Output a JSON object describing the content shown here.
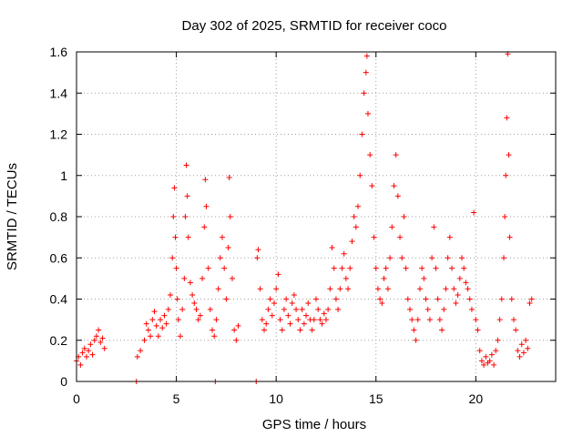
{
  "chart_data": {
    "type": "scatter",
    "title": "Day 302 of 2025, SRMTID for receiver coco",
    "xlabel": "GPS time / hours",
    "ylabel": "SRMTID / TECUs",
    "xlim": [
      0,
      24
    ],
    "ylim": [
      0,
      1.6
    ],
    "xticks": [
      0,
      5,
      10,
      15,
      20
    ],
    "xtick_labels": [
      "0",
      "5",
      "10",
      "15",
      "20"
    ],
    "yticks": [
      0,
      0.2,
      0.4,
      0.6,
      0.8,
      1.0,
      1.2,
      1.4,
      1.6
    ],
    "ytick_labels": [
      "0",
      "0.2",
      "0.4",
      "0.6",
      "0.8",
      "1",
      "1.2",
      "1.4",
      "1.6"
    ],
    "grid": true,
    "marker": "plus",
    "marker_color": "#ff0000",
    "series": [
      {
        "name": "SRMTID",
        "points": [
          [
            0.0,
            0.1
          ],
          [
            0.1,
            0.12
          ],
          [
            0.2,
            0.08
          ],
          [
            0.3,
            0.14
          ],
          [
            0.4,
            0.16
          ],
          [
            0.5,
            0.12
          ],
          [
            0.6,
            0.15
          ],
          [
            0.7,
            0.18
          ],
          [
            0.8,
            0.13
          ],
          [
            0.9,
            0.2
          ],
          [
            1.0,
            0.22
          ],
          [
            1.1,
            0.25
          ],
          [
            1.2,
            0.19
          ],
          [
            1.3,
            0.21
          ],
          [
            1.4,
            0.16
          ],
          [
            3.0,
            0.0
          ],
          [
            3.05,
            0.12
          ],
          [
            3.2,
            0.15
          ],
          [
            3.4,
            0.2
          ],
          [
            3.5,
            0.28
          ],
          [
            3.6,
            0.25
          ],
          [
            3.7,
            0.22
          ],
          [
            3.8,
            0.3
          ],
          [
            3.9,
            0.34
          ],
          [
            4.0,
            0.27
          ],
          [
            4.1,
            0.22
          ],
          [
            4.2,
            0.3
          ],
          [
            4.3,
            0.26
          ],
          [
            4.4,
            0.32
          ],
          [
            4.5,
            0.28
          ],
          [
            4.6,
            0.35
          ],
          [
            4.7,
            0.42
          ],
          [
            4.8,
            0.6
          ],
          [
            4.85,
            0.8
          ],
          [
            4.9,
            0.94
          ],
          [
            4.95,
            0.7
          ],
          [
            5.0,
            0.55
          ],
          [
            5.05,
            0.4
          ],
          [
            5.1,
            0.3
          ],
          [
            5.2,
            0.22
          ],
          [
            5.3,
            0.35
          ],
          [
            5.4,
            0.5
          ],
          [
            5.45,
            0.8
          ],
          [
            5.5,
            1.05
          ],
          [
            5.55,
            0.9
          ],
          [
            5.6,
            0.7
          ],
          [
            5.7,
            0.48
          ],
          [
            5.8,
            0.42
          ],
          [
            5.9,
            0.38
          ],
          [
            6.0,
            0.35
          ],
          [
            6.1,
            0.3
          ],
          [
            6.2,
            0.32
          ],
          [
            6.3,
            0.5
          ],
          [
            6.4,
            0.75
          ],
          [
            6.45,
            0.98
          ],
          [
            6.5,
            0.85
          ],
          [
            6.6,
            0.55
          ],
          [
            6.7,
            0.35
          ],
          [
            6.8,
            0.25
          ],
          [
            6.9,
            0.22
          ],
          [
            6.95,
            0.0
          ],
          [
            7.0,
            0.3
          ],
          [
            7.1,
            0.45
          ],
          [
            7.2,
            0.6
          ],
          [
            7.3,
            0.7
          ],
          [
            7.4,
            0.55
          ],
          [
            7.5,
            0.4
          ],
          [
            7.6,
            0.65
          ],
          [
            7.65,
            0.99
          ],
          [
            7.7,
            0.8
          ],
          [
            7.8,
            0.5
          ],
          [
            7.9,
            0.25
          ],
          [
            8.0,
            0.2
          ],
          [
            8.1,
            0.27
          ],
          [
            9.0,
            0.0
          ],
          [
            9.05,
            0.6
          ],
          [
            9.1,
            0.64
          ],
          [
            9.2,
            0.45
          ],
          [
            9.3,
            0.3
          ],
          [
            9.4,
            0.25
          ],
          [
            9.5,
            0.28
          ],
          [
            9.6,
            0.35
          ],
          [
            9.7,
            0.4
          ],
          [
            9.8,
            0.32
          ],
          [
            9.9,
            0.38
          ],
          [
            10.0,
            0.45
          ],
          [
            10.1,
            0.52
          ],
          [
            10.2,
            0.3
          ],
          [
            10.3,
            0.25
          ],
          [
            10.4,
            0.35
          ],
          [
            10.5,
            0.4
          ],
          [
            10.6,
            0.32
          ],
          [
            10.7,
            0.28
          ],
          [
            10.8,
            0.38
          ],
          [
            10.9,
            0.42
          ],
          [
            11.0,
            0.35
          ],
          [
            11.1,
            0.3
          ],
          [
            11.2,
            0.25
          ],
          [
            11.3,
            0.35
          ],
          [
            11.4,
            0.28
          ],
          [
            11.5,
            0.32
          ],
          [
            11.6,
            0.38
          ],
          [
            11.7,
            0.3
          ],
          [
            11.8,
            0.25
          ],
          [
            11.9,
            0.3
          ],
          [
            12.0,
            0.4
          ],
          [
            12.1,
            0.35
          ],
          [
            12.2,
            0.3
          ],
          [
            12.3,
            0.28
          ],
          [
            12.4,
            0.33
          ],
          [
            12.5,
            0.3
          ],
          [
            12.6,
            0.35
          ],
          [
            12.7,
            0.45
          ],
          [
            12.8,
            0.65
          ],
          [
            12.9,
            0.55
          ],
          [
            13.0,
            0.4
          ],
          [
            13.1,
            0.35
          ],
          [
            13.2,
            0.45
          ],
          [
            13.3,
            0.55
          ],
          [
            13.4,
            0.62
          ],
          [
            13.5,
            0.5
          ],
          [
            13.6,
            0.45
          ],
          [
            13.7,
            0.55
          ],
          [
            13.8,
            0.68
          ],
          [
            13.9,
            0.8
          ],
          [
            14.0,
            0.75
          ],
          [
            14.1,
            0.85
          ],
          [
            14.2,
            1.0
          ],
          [
            14.3,
            1.2
          ],
          [
            14.4,
            1.4
          ],
          [
            14.5,
            1.5
          ],
          [
            14.55,
            1.58
          ],
          [
            14.6,
            1.3
          ],
          [
            14.7,
            1.1
          ],
          [
            14.8,
            0.95
          ],
          [
            14.9,
            0.7
          ],
          [
            15.0,
            0.55
          ],
          [
            15.1,
            0.45
          ],
          [
            15.2,
            0.4
          ],
          [
            15.3,
            0.38
          ],
          [
            15.4,
            0.5
          ],
          [
            15.5,
            0.55
          ],
          [
            15.6,
            0.45
          ],
          [
            15.7,
            0.6
          ],
          [
            15.8,
            0.75
          ],
          [
            15.9,
            0.95
          ],
          [
            16.0,
            1.1
          ],
          [
            16.1,
            0.9
          ],
          [
            16.2,
            0.7
          ],
          [
            16.3,
            0.6
          ],
          [
            16.4,
            0.8
          ],
          [
            16.5,
            0.55
          ],
          [
            16.6,
            0.4
          ],
          [
            16.7,
            0.35
          ],
          [
            16.8,
            0.3
          ],
          [
            16.9,
            0.25
          ],
          [
            17.0,
            0.2
          ],
          [
            17.1,
            0.3
          ],
          [
            17.2,
            0.45
          ],
          [
            17.3,
            0.55
          ],
          [
            17.4,
            0.5
          ],
          [
            17.5,
            0.4
          ],
          [
            17.6,
            0.35
          ],
          [
            17.7,
            0.3
          ],
          [
            17.8,
            0.6
          ],
          [
            17.9,
            0.75
          ],
          [
            18.0,
            0.55
          ],
          [
            18.1,
            0.4
          ],
          [
            18.2,
            0.3
          ],
          [
            18.3,
            0.25
          ],
          [
            18.4,
            0.35
          ],
          [
            18.5,
            0.45
          ],
          [
            18.6,
            0.6
          ],
          [
            18.7,
            0.7
          ],
          [
            18.8,
            0.55
          ],
          [
            18.9,
            0.45
          ],
          [
            19.0,
            0.38
          ],
          [
            19.1,
            0.42
          ],
          [
            19.2,
            0.5
          ],
          [
            19.3,
            0.6
          ],
          [
            19.4,
            0.55
          ],
          [
            19.5,
            0.48
          ],
          [
            19.6,
            0.45
          ],
          [
            19.7,
            0.4
          ],
          [
            19.8,
            0.35
          ],
          [
            19.9,
            0.82
          ],
          [
            20.0,
            0.3
          ],
          [
            20.1,
            0.25
          ],
          [
            20.2,
            0.15
          ],
          [
            20.3,
            0.1
          ],
          [
            20.4,
            0.08
          ],
          [
            20.5,
            0.12
          ],
          [
            20.6,
            0.09
          ],
          [
            20.7,
            0.1
          ],
          [
            20.8,
            0.13
          ],
          [
            20.9,
            0.08
          ],
          [
            21.0,
            0.15
          ],
          [
            21.1,
            0.2
          ],
          [
            21.2,
            0.3
          ],
          [
            21.3,
            0.4
          ],
          [
            21.4,
            0.6
          ],
          [
            21.45,
            0.8
          ],
          [
            21.5,
            1.0
          ],
          [
            21.55,
            1.28
          ],
          [
            21.6,
            1.59
          ],
          [
            21.65,
            1.1
          ],
          [
            21.7,
            0.7
          ],
          [
            21.8,
            0.4
          ],
          [
            21.9,
            0.3
          ],
          [
            22.0,
            0.25
          ],
          [
            22.1,
            0.15
          ],
          [
            22.2,
            0.12
          ],
          [
            22.3,
            0.18
          ],
          [
            22.4,
            0.14
          ],
          [
            22.5,
            0.2
          ],
          [
            22.6,
            0.16
          ],
          [
            22.7,
            0.38
          ],
          [
            22.8,
            0.4
          ]
        ]
      }
    ]
  }
}
